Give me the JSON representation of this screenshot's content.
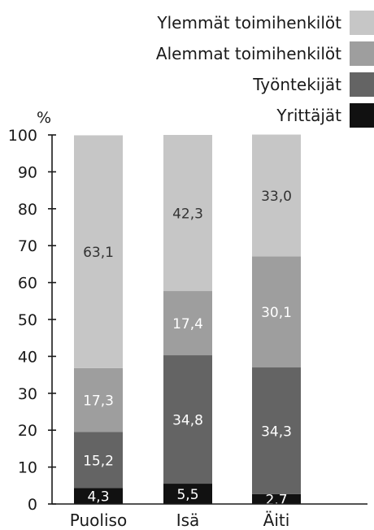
{
  "chart_data": {
    "type": "bar",
    "stacked": true,
    "unit_label": "%",
    "categories": [
      "Puoliso",
      "Isä",
      "Äiti"
    ],
    "ylim": [
      0,
      100
    ],
    "yticks": [
      "0",
      "10",
      "20",
      "30",
      "40",
      "50",
      "60",
      "70",
      "80",
      "90",
      "100"
    ],
    "series": [
      {
        "name": "Yrittäjät",
        "color": "#111111",
        "values": [
          4.3,
          5.5,
          2.7
        ],
        "labels": [
          "4,3",
          "5,5",
          "2,7"
        ],
        "label_color": "#ffffff"
      },
      {
        "name": "Työntekijät",
        "color": "#646464",
        "values": [
          15.2,
          34.8,
          34.3
        ],
        "labels": [
          "15,2",
          "34,8",
          "34,3"
        ],
        "label_color": "#ffffff"
      },
      {
        "name": "Alemmat toimihenkilöt",
        "color": "#9e9e9e",
        "values": [
          17.3,
          17.4,
          30.1
        ],
        "labels": [
          "17,3",
          "17,4",
          "30,1"
        ],
        "label_color": "#ffffff"
      },
      {
        "name": "Ylemmät toimihenkilöt",
        "color": "#c6c6c6",
        "values": [
          63.1,
          42.3,
          33.0
        ],
        "labels": [
          "63,1",
          "42,3",
          "33,0"
        ],
        "label_color": "#333333"
      }
    ],
    "legend_order": [
      "Ylemmät toimihenkilöt",
      "Alemmat toimihenkilöt",
      "Työntekijät",
      "Yrittäjät"
    ],
    "legend_position": "top-right"
  }
}
